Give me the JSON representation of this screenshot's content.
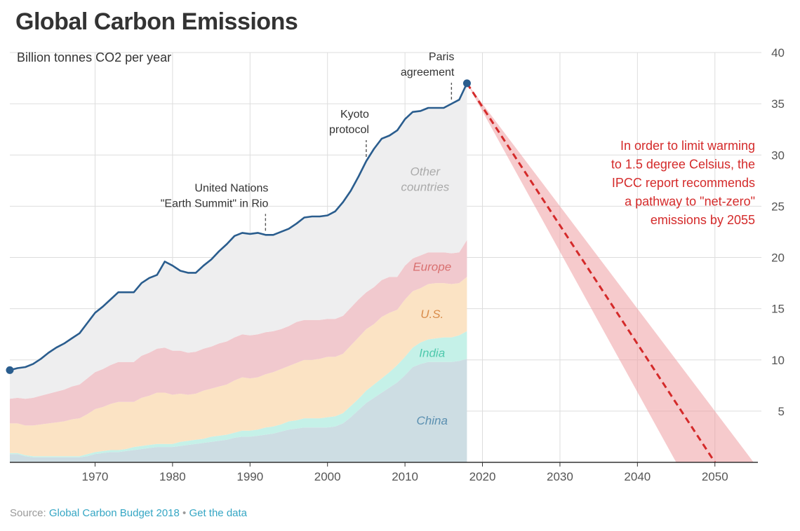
{
  "chart_data": {
    "type": "area",
    "title": "Global Carbon Emissions",
    "subtitle": "Billion tonnes CO2 per year",
    "xlim": [
      1959,
      2056
    ],
    "ylim": [
      0,
      40
    ],
    "x_ticks": [
      1970,
      1980,
      1990,
      2000,
      2010,
      2020,
      2030,
      2040,
      2050
    ],
    "y_ticks": [
      5,
      10,
      15,
      20,
      25,
      30,
      35,
      40
    ],
    "y_axis_side": "right",
    "grid": true,
    "x": [
      1959,
      1960,
      1961,
      1962,
      1963,
      1964,
      1965,
      1966,
      1967,
      1968,
      1969,
      1970,
      1971,
      1972,
      1973,
      1974,
      1975,
      1976,
      1977,
      1978,
      1979,
      1980,
      1981,
      1982,
      1983,
      1984,
      1985,
      1986,
      1987,
      1988,
      1989,
      1990,
      1991,
      1992,
      1993,
      1994,
      1995,
      1996,
      1997,
      1998,
      1999,
      2000,
      2001,
      2002,
      2003,
      2004,
      2005,
      2006,
      2007,
      2008,
      2009,
      2010,
      2011,
      2012,
      2013,
      2014,
      2015,
      2016,
      2017,
      2018
    ],
    "series": [
      {
        "name": "China",
        "color": "#cddde3",
        "label_color": "#5a8fb0",
        "values": [
          0.8,
          0.8,
          0.6,
          0.5,
          0.5,
          0.5,
          0.5,
          0.5,
          0.5,
          0.5,
          0.6,
          0.8,
          0.9,
          1.0,
          1.0,
          1.1,
          1.2,
          1.3,
          1.4,
          1.5,
          1.5,
          1.5,
          1.6,
          1.7,
          1.8,
          1.9,
          2.0,
          2.1,
          2.2,
          2.4,
          2.5,
          2.5,
          2.6,
          2.7,
          2.8,
          3.0,
          3.2,
          3.3,
          3.4,
          3.4,
          3.4,
          3.4,
          3.5,
          3.8,
          4.4,
          5.1,
          5.8,
          6.3,
          6.8,
          7.3,
          7.8,
          8.5,
          9.3,
          9.6,
          9.8,
          9.8,
          9.8,
          9.8,
          9.9,
          10.1
        ]
      },
      {
        "name": "India",
        "color": "#c5f1e8",
        "label_color": "#4fc9ad",
        "values": [
          0.1,
          0.1,
          0.1,
          0.1,
          0.1,
          0.1,
          0.1,
          0.1,
          0.1,
          0.1,
          0.2,
          0.2,
          0.2,
          0.2,
          0.2,
          0.2,
          0.3,
          0.3,
          0.3,
          0.3,
          0.3,
          0.3,
          0.4,
          0.4,
          0.4,
          0.4,
          0.5,
          0.5,
          0.5,
          0.5,
          0.6,
          0.6,
          0.6,
          0.7,
          0.7,
          0.7,
          0.8,
          0.8,
          0.9,
          0.9,
          0.9,
          1.0,
          1.0,
          1.0,
          1.1,
          1.1,
          1.2,
          1.3,
          1.4,
          1.5,
          1.7,
          1.8,
          1.9,
          2.1,
          2.2,
          2.3,
          2.4,
          2.4,
          2.5,
          2.7
        ]
      },
      {
        "name": "U.S.",
        "color": "#fbe3c4",
        "label_color": "#d98c4a",
        "values": [
          2.9,
          2.9,
          2.9,
          3.0,
          3.1,
          3.2,
          3.3,
          3.4,
          3.6,
          3.7,
          3.9,
          4.2,
          4.3,
          4.5,
          4.7,
          4.6,
          4.4,
          4.7,
          4.8,
          5.0,
          5.0,
          4.8,
          4.7,
          4.5,
          4.5,
          4.7,
          4.7,
          4.8,
          4.9,
          5.1,
          5.2,
          5.1,
          5.1,
          5.2,
          5.3,
          5.4,
          5.4,
          5.6,
          5.7,
          5.7,
          5.8,
          5.9,
          5.8,
          5.8,
          5.9,
          6.0,
          6.0,
          5.9,
          6.0,
          5.8,
          5.4,
          5.6,
          5.5,
          5.3,
          5.4,
          5.4,
          5.3,
          5.2,
          5.1,
          5.3
        ]
      },
      {
        "name": "Europe",
        "color": "#f1c9ce",
        "label_color": "#d97070",
        "values": [
          2.4,
          2.5,
          2.6,
          2.7,
          2.8,
          2.9,
          3.0,
          3.1,
          3.2,
          3.3,
          3.5,
          3.6,
          3.7,
          3.8,
          3.9,
          3.9,
          3.9,
          4.1,
          4.2,
          4.3,
          4.4,
          4.3,
          4.2,
          4.1,
          4.1,
          4.1,
          4.1,
          4.2,
          4.2,
          4.2,
          4.2,
          4.2,
          4.2,
          4.1,
          4.0,
          3.9,
          3.9,
          4.0,
          3.9,
          3.9,
          3.8,
          3.7,
          3.7,
          3.7,
          3.7,
          3.7,
          3.6,
          3.6,
          3.6,
          3.5,
          3.2,
          3.3,
          3.2,
          3.2,
          3.1,
          3.0,
          3.0,
          3.0,
          3.0,
          3.6
        ]
      },
      {
        "name": "Other countries",
        "color": "#eeeeef",
        "label_color": "#aaaaaa",
        "values": [
          2.8,
          2.9,
          3.1,
          3.3,
          3.6,
          4.0,
          4.3,
          4.5,
          4.7,
          5.0,
          5.4,
          5.8,
          6.1,
          6.4,
          6.8,
          6.8,
          6.8,
          7.1,
          7.3,
          7.2,
          8.4,
          8.3,
          7.8,
          7.8,
          7.7,
          8.1,
          8.5,
          9.0,
          9.5,
          9.9,
          9.9,
          9.9,
          9.9,
          9.5,
          9.4,
          9.5,
          9.5,
          9.6,
          10.0,
          10.1,
          10.1,
          10.1,
          10.5,
          11.1,
          11.4,
          12.0,
          12.8,
          13.5,
          13.8,
          13.8,
          14.3,
          14.3,
          14.3,
          14.1,
          14.1,
          14.1,
          14.1,
          14.6,
          14.9,
          15.3
        ]
      }
    ],
    "total_line": {
      "color": "#2a5d8e",
      "start_label_year": 1959
    },
    "projection": {
      "from": [
        2018,
        37.0
      ],
      "to": [
        2050,
        0
      ],
      "band_end_years": [
        2045,
        2055
      ],
      "color": "#d42a2a",
      "band_color": "#ee9ea2"
    },
    "annotations": [
      {
        "year": 1992,
        "lines": [
          "United Nations",
          "\"Earth Summit\" in Rio"
        ]
      },
      {
        "year": 2005,
        "lines": [
          "Kyoto",
          "protocol"
        ]
      },
      {
        "year": 2016,
        "lines": [
          "Paris",
          "agreement"
        ]
      }
    ],
    "ipcc_note": [
      "In order to limit warming",
      "to 1.5 degree Celsius, the",
      "IPCC report recommends",
      "a pathway to \"net-zero\"",
      "emissions by 2055"
    ]
  },
  "footer": {
    "prefix": "Source: ",
    "source_link": "Global Carbon Budget 2018",
    "separator": " • ",
    "data_link": "Get the data"
  }
}
